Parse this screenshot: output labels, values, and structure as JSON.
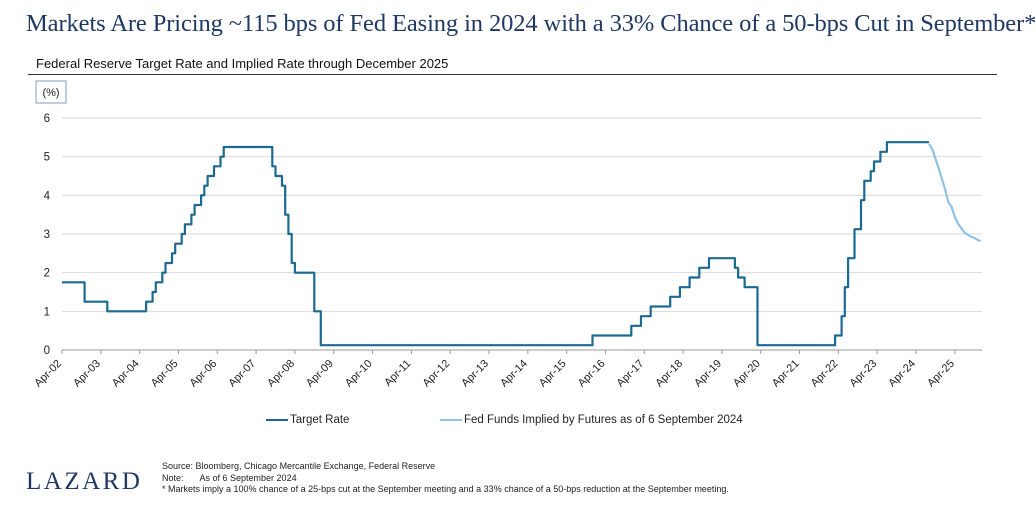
{
  "header": {
    "title": "Markets Are Pricing ~115 bps of Fed Easing in 2024 with a 33% Chance of a 50-bps Cut in September*",
    "subtitle": "Federal Reserve Target Rate and Implied Rate through December 2025"
  },
  "chart_data": {
    "type": "line",
    "unit_label": "(%)",
    "ylim": [
      0,
      6
    ],
    "yticks": [
      0,
      1,
      2,
      3,
      4,
      5,
      6
    ],
    "xlim": [
      2002.25,
      2025.95
    ],
    "xtick_labels": [
      "Apr-02",
      "Apr-03",
      "Apr-04",
      "Apr-05",
      "Apr-06",
      "Apr-07",
      "Apr-08",
      "Apr-09",
      "Apr-10",
      "Apr-11",
      "Apr-12",
      "Apr-13",
      "Apr-14",
      "Apr-15",
      "Apr-16",
      "Apr-17",
      "Apr-18",
      "Apr-19",
      "Apr-20",
      "Apr-21",
      "Apr-22",
      "Apr-23",
      "Apr-24",
      "Apr-25"
    ],
    "grid": "horizontal",
    "legend_position": "bottom",
    "colors": {
      "target": "#1b6a92",
      "implied": "#8fc3e6",
      "grid": "#d9d9d9",
      "axis": "#999999"
    },
    "series": [
      {
        "name": "Target Rate",
        "x": [
          "Apr-02",
          "Nov-02",
          "Jun-03",
          "Jun-04",
          "Aug-04",
          "Sep-04",
          "Nov-04",
          "Dec-04",
          "Feb-05",
          "Mar-05",
          "May-05",
          "Jun-05",
          "Aug-05",
          "Sep-05",
          "Nov-05",
          "Dec-05",
          "Jan-06",
          "Mar-06",
          "May-06",
          "Jun-06",
          "Sep-07",
          "Oct-07",
          "Dec-07",
          "Jan-08",
          "Feb-08",
          "Mar-08",
          "Apr-08",
          "Oct-08",
          "Nov-08",
          "Dec-08",
          "Dec-15",
          "Dec-16",
          "Mar-17",
          "Jun-17",
          "Dec-17",
          "Mar-18",
          "Jun-18",
          "Sep-18",
          "Dec-18",
          "Aug-19",
          "Sep-19",
          "Nov-19",
          "Mar-20",
          "Apr-20",
          "Mar-22",
          "May-22",
          "Jun-22",
          "Jul-22",
          "Sep-22",
          "Nov-22",
          "Dec-22",
          "Feb-23",
          "Mar-23",
          "May-23",
          "Jul-23",
          "Aug-24"
        ],
        "values": [
          1.75,
          1.25,
          1.0,
          1.25,
          1.5,
          1.75,
          2.0,
          2.25,
          2.5,
          2.75,
          3.0,
          3.25,
          3.5,
          3.75,
          4.0,
          4.25,
          4.5,
          4.75,
          5.0,
          5.25,
          4.75,
          4.5,
          4.25,
          3.5,
          3.0,
          2.25,
          2.0,
          1.0,
          1.0,
          0.125,
          0.375,
          0.625,
          0.875,
          1.125,
          1.375,
          1.625,
          1.875,
          2.125,
          2.375,
          2.125,
          1.875,
          1.625,
          0.125,
          0.125,
          0.375,
          0.875,
          1.625,
          2.375,
          3.125,
          3.875,
          4.375,
          4.625,
          4.875,
          5.125,
          5.375,
          5.375
        ]
      },
      {
        "name": "Fed Funds Implied by Futures as of 6 September 2024",
        "x": [
          "Aug-24",
          "Sep-24",
          "Oct-24",
          "Nov-24",
          "Dec-24",
          "Jan-25",
          "Feb-25",
          "Mar-25",
          "Apr-25",
          "May-25",
          "Jun-25",
          "Jul-25",
          "Aug-25",
          "Sep-25",
          "Oct-25",
          "Nov-25",
          "Dec-25"
        ],
        "values": [
          5.33,
          5.2,
          4.95,
          4.7,
          4.42,
          4.15,
          3.82,
          3.7,
          3.45,
          3.27,
          3.15,
          3.04,
          2.98,
          2.93,
          2.9,
          2.85,
          2.82
        ]
      }
    ]
  },
  "footer": {
    "logo": "LAZARD",
    "source": "Source: Bloomberg, Chicago Mercantile Exchange, Federal Reserve",
    "note_label": "Note:",
    "note_text": "As of 6 September 2024",
    "footnote": "* Markets imply a 100% chance of a 25-bps cut at the September meeting and a 33% chance of a 50-bps reduction at the September meeting."
  }
}
